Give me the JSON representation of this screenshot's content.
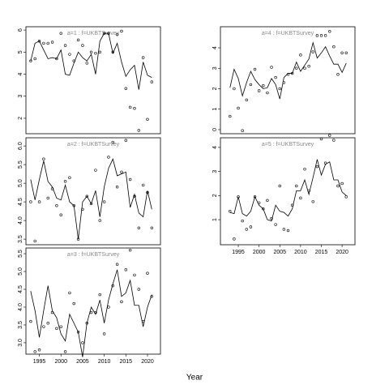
{
  "xlabel": "Year",
  "chart_data": [
    {
      "type": "line",
      "title": "a=1 : f=UKBTSurvey",
      "x": [
        1993,
        1994,
        1995,
        1996,
        1997,
        1998,
        1999,
        2000,
        2001,
        2002,
        2003,
        2004,
        2005,
        2006,
        2007,
        2008,
        2009,
        2010,
        2011,
        2012,
        2013,
        2014,
        2015,
        2016,
        2017,
        2018,
        2019,
        2020,
        2021
      ],
      "series": [
        {
          "mode": "markers",
          "color": "#000000",
          "values": [
            4.6,
            4.7,
            5.5,
            5.4,
            5.4,
            5.45,
            4.7,
            5.85,
            5.3,
            4.9,
            4.6,
            5.55,
            5.3,
            4.5,
            5.0,
            4.95,
            5.0,
            5.85,
            5.85,
            5.0,
            5.8,
            5.95,
            3.35,
            2.5,
            2.45,
            1.45,
            4.75,
            1.95,
            3.65
          ]
        },
        {
          "mode": "lines",
          "color": "#000000",
          "values": [
            4.6,
            5.4,
            5.5,
            5.1,
            4.7,
            4.75,
            4.7,
            5.1,
            4.0,
            3.95,
            4.5,
            5.0,
            4.75,
            4.6,
            4.9,
            4.0,
            5.5,
            5.85,
            5.85,
            4.95,
            5.4,
            4.55,
            3.9,
            4.2,
            4.4,
            3.3,
            4.55,
            3.95,
            3.85
          ]
        }
      ],
      "xlim": [
        1991.9,
        2023.0
      ],
      "ylim": [
        1.3,
        6.15
      ],
      "yticks": [
        2,
        3,
        4,
        5,
        6
      ]
    },
    {
      "type": "line",
      "title": "a=2 : f=UKBTSurvey",
      "x": [
        1993,
        1994,
        1995,
        1996,
        1997,
        1998,
        1999,
        2000,
        2001,
        2002,
        2003,
        2004,
        2005,
        2006,
        2007,
        2008,
        2009,
        2010,
        2011,
        2012,
        2013,
        2014,
        2015,
        2016,
        2017,
        2018,
        2019,
        2020,
        2021
      ],
      "series": [
        {
          "mode": "markers",
          "color": "#000000",
          "values": [
            4.5,
            3.45,
            4.5,
            5.65,
            4.6,
            4.85,
            4.4,
            4.15,
            5.05,
            5.15,
            4.4,
            3.5,
            4.3,
            4.65,
            4.45,
            5.35,
            4.0,
            4.5,
            5.7,
            6.1,
            4.9,
            5.3,
            6.15,
            5.1,
            4.65,
            3.8,
            4.95,
            4.75,
            3.8
          ]
        },
        {
          "mode": "lines",
          "color": "#000000",
          "values": [
            5.1,
            4.55,
            5.1,
            5.6,
            5.05,
            4.9,
            4.6,
            4.55,
            4.95,
            4.5,
            4.4,
            3.5,
            4.5,
            4.65,
            4.45,
            4.8,
            4.1,
            4.9,
            5.4,
            5.65,
            5.2,
            5.25,
            5.3,
            4.35,
            4.7,
            4.2,
            4.1,
            4.8,
            4.3
          ]
        }
      ],
      "xlim": [
        1991.9,
        2023.0
      ],
      "ylim": [
        3.35,
        6.22
      ],
      "yticks": [
        {
          "value": 3.5,
          "label": "3.5"
        },
        {
          "value": 4,
          "label": "4.0"
        },
        {
          "value": 4.5,
          "label": "4.5"
        },
        {
          "value": 5,
          "label": "5.0"
        },
        {
          "value": 5.5,
          "label": "5.5"
        },
        {
          "value": 6,
          "label": "6.0"
        }
      ]
    },
    {
      "type": "line",
      "title": "a=3 : f=UKBTSurvey",
      "x": [
        1993,
        1994,
        1995,
        1996,
        1997,
        1998,
        1999,
        2000,
        2001,
        2002,
        2003,
        2004,
        2005,
        2006,
        2007,
        2008,
        2009,
        2010,
        2011,
        2012,
        2013,
        2014,
        2015,
        2016,
        2017,
        2018,
        2019,
        2020,
        2021
      ],
      "series": [
        {
          "mode": "markers",
          "color": "#000000",
          "values": [
            3.6,
            2.75,
            2.8,
            3.45,
            3.55,
            3.85,
            3.4,
            3.45,
            2.75,
            4.4,
            4.1,
            3.3,
            3.0,
            3.55,
            3.85,
            3.85,
            4.35,
            3.25,
            4.0,
            4.6,
            5.2,
            4.15,
            5.05,
            5.6,
            4.9,
            4.5,
            3.6,
            4.95,
            4.3
          ]
        },
        {
          "mode": "lines",
          "color": "#000000",
          "values": [
            4.45,
            3.9,
            3.15,
            3.9,
            4.6,
            3.9,
            3.7,
            3.25,
            3.05,
            3.8,
            3.55,
            3.3,
            2.6,
            3.55,
            4.0,
            3.8,
            4.2,
            3.55,
            4.2,
            4.65,
            5.05,
            4.3,
            4.4,
            4.75,
            4.05,
            4.05,
            3.45,
            4.0,
            4.35
          ]
        }
      ],
      "xlim": [
        1991.9,
        2023.0
      ],
      "ylim": [
        2.68,
        5.66
      ],
      "yticks": [
        {
          "value": 3,
          "label": "3.0"
        },
        {
          "value": 3.5,
          "label": "3.5"
        },
        {
          "value": 4,
          "label": "4.0"
        },
        {
          "value": 4.5,
          "label": "4.5"
        },
        {
          "value": 5,
          "label": "5.0"
        },
        {
          "value": 5.5,
          "label": "5.5"
        }
      ],
      "xticks": [
        1995,
        2000,
        2005,
        2010,
        2015,
        2020
      ]
    },
    {
      "type": "line",
      "title": "a=4 : f=UKBTSurvey",
      "x": [
        1993,
        1994,
        1995,
        1996,
        1997,
        1998,
        1999,
        2000,
        2001,
        2002,
        2003,
        2004,
        2005,
        2006,
        2007,
        2008,
        2009,
        2010,
        2011,
        2012,
        2013,
        2014,
        2015,
        2016,
        2017,
        2018,
        2019,
        2020,
        2021
      ],
      "series": [
        {
          "mode": "markers",
          "color": "#000000",
          "values": [
            0.65,
            2.0,
            1.05,
            -0.05,
            1.45,
            2.2,
            2.95,
            1.9,
            2.15,
            1.8,
            3.05,
            2.55,
            2.0,
            2.3,
            2.7,
            2.75,
            3.0,
            3.65,
            3.0,
            3.1,
            3.8,
            4.6,
            4.6,
            4.6,
            4.8,
            4.05,
            2.7,
            3.75,
            3.75
          ]
        },
        {
          "mode": "lines",
          "color": "#000000",
          "values": [
            2.05,
            2.95,
            2.5,
            1.65,
            2.3,
            2.85,
            2.45,
            2.2,
            2.0,
            2.05,
            2.5,
            2.2,
            1.5,
            2.55,
            2.75,
            2.75,
            3.3,
            2.85,
            3.15,
            3.45,
            4.25,
            3.5,
            3.75,
            4.05,
            3.6,
            3.2,
            3.2,
            2.8,
            3.25
          ]
        }
      ],
      "xlim": [
        1990.7,
        2023.1
      ],
      "ylim": [
        -0.2,
        5.03
      ],
      "yticks": [
        0,
        1,
        2,
        3,
        4
      ]
    },
    {
      "type": "line",
      "title": "a=5 : f=UKBTSurvey",
      "x": [
        1993,
        1994,
        1995,
        1996,
        1997,
        1998,
        1999,
        2000,
        2001,
        2002,
        2003,
        2004,
        2005,
        2006,
        2007,
        2008,
        2009,
        2010,
        2011,
        2012,
        2013,
        2014,
        2015,
        2016,
        2017,
        2018,
        2019,
        2020,
        2021
      ],
      "series": [
        {
          "mode": "markers",
          "color": "#000000",
          "values": [
            1.35,
            0.2,
            1.95,
            0.95,
            0.6,
            0.7,
            1.95,
            1.7,
            1.45,
            1.8,
            1.05,
            0.8,
            2.4,
            0.6,
            0.55,
            1.6,
            2.4,
            1.9,
            3.1,
            2.2,
            1.75,
            3.2,
            4.35,
            3.35,
            4.5,
            4.3,
            2.4,
            2.5,
            1.95
          ]
        },
        {
          "mode": "lines",
          "color": "#000000",
          "values": [
            1.3,
            1.25,
            1.95,
            1.25,
            1.15,
            1.35,
            1.95,
            1.6,
            1.45,
            1.0,
            0.95,
            1.6,
            1.35,
            1.3,
            1.15,
            1.45,
            2.2,
            2.2,
            2.65,
            2.05,
            2.75,
            3.5,
            2.85,
            3.3,
            3.4,
            2.65,
            2.65,
            2.15,
            2.0
          ]
        }
      ],
      "xlim": [
        1990.7,
        2023.1
      ],
      "ylim": [
        -0.04,
        4.4
      ],
      "yticks": [
        1,
        2,
        3,
        4
      ],
      "xticks": [
        1995,
        2000,
        2005,
        2010,
        2015,
        2020
      ]
    }
  ]
}
